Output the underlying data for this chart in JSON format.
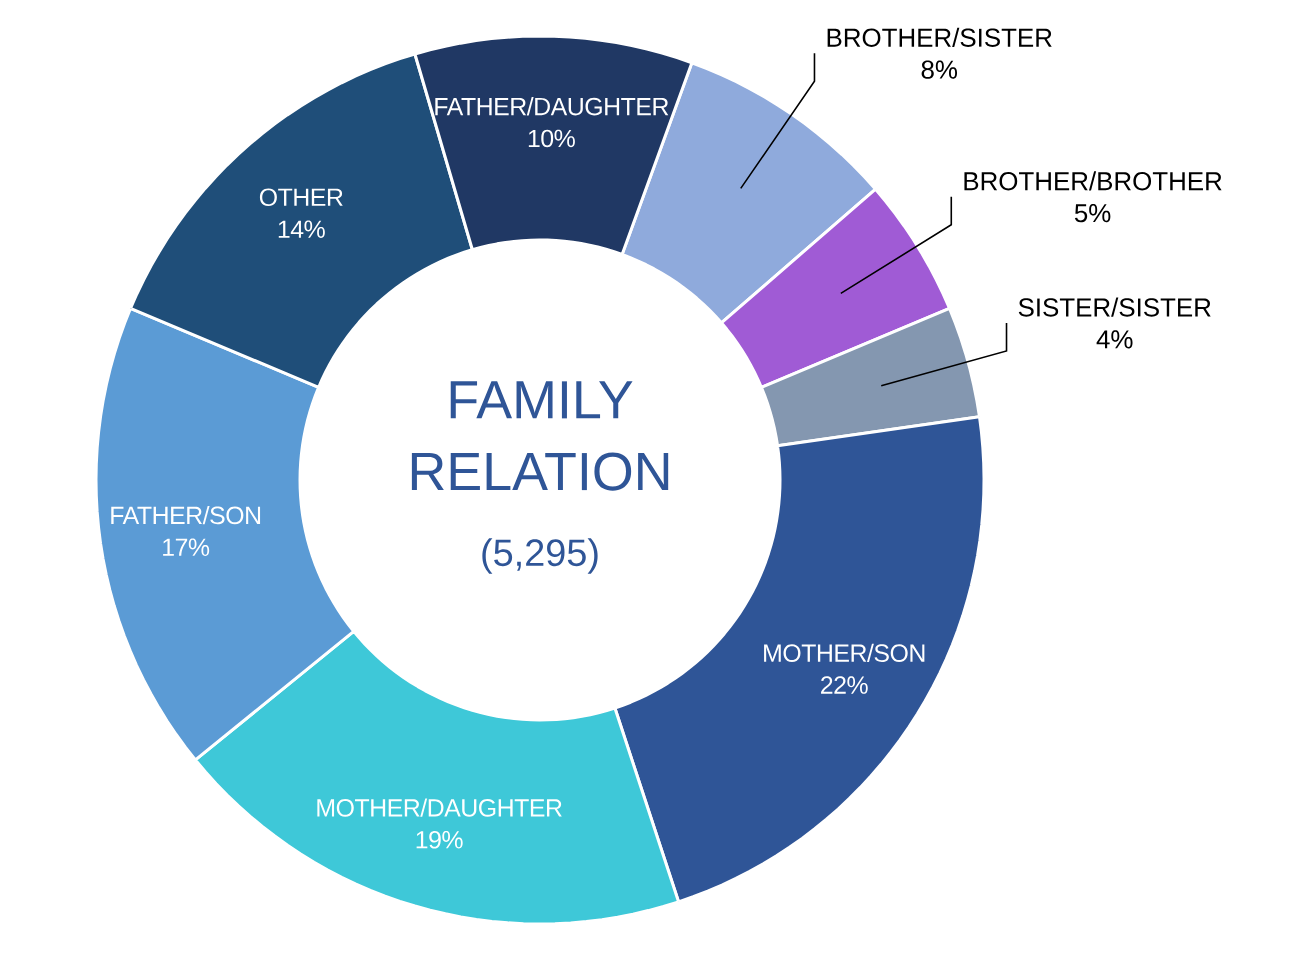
{
  "chart_data": {
    "type": "donut",
    "title": "FAMILY RELATION",
    "subtitle": "(5,295)",
    "categories": [
      "BROTHER/SISTER",
      "BROTHER/BROTHER",
      "SISTER/SISTER",
      "MOTHER/SON",
      "MOTHER/DAUGHTER",
      "FATHER/SON",
      "OTHER",
      "FATHER/DAUGHTER"
    ],
    "values": [
      8,
      5,
      4,
      22,
      19,
      17,
      14,
      10
    ],
    "value_labels": [
      "8%",
      "5%",
      "4%",
      "22%",
      "19%",
      "17%",
      "14%",
      "10%"
    ],
    "colors": [
      "#8faadc",
      "#a05bd5",
      "#8497b0",
      "#2f5597",
      "#3ec8d8",
      "#5b9bd5",
      "#1f4e79",
      "#203864"
    ]
  }
}
